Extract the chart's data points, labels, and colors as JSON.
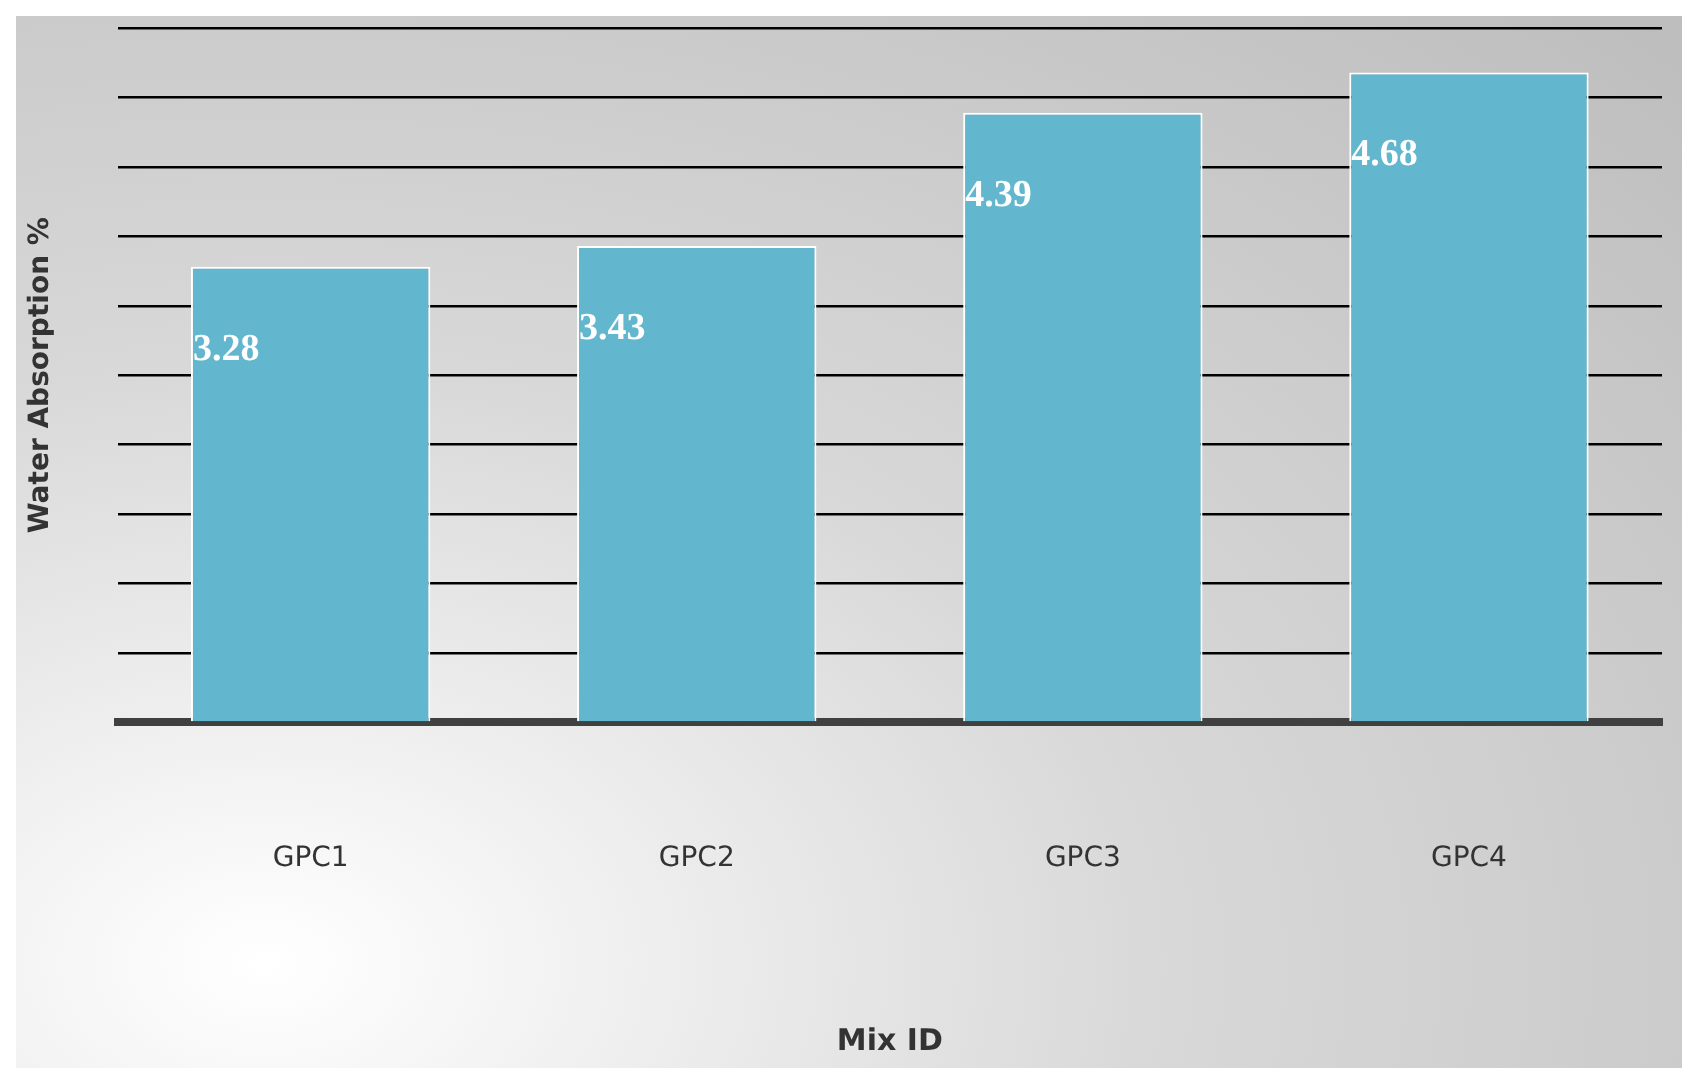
{
  "chart_data": {
    "type": "bar",
    "xlabel": "Mix ID",
    "ylabel": "Water Absorption %",
    "categories": [
      "GPC1",
      "GPC2",
      "GPC3",
      "GPC4"
    ],
    "values": [
      3.28,
      3.43,
      4.39,
      4.68
    ],
    "color": "#62b7ce",
    "ylim": [
      0,
      5
    ],
    "yticks": [
      {
        "value": 0,
        "label": null
      },
      {
        "value": 0.5,
        "label": null
      },
      {
        "value": 1,
        "label": null
      },
      {
        "value": 1.5,
        "label": null
      },
      {
        "value": 2,
        "label": null
      },
      {
        "value": 2.5,
        "label": null
      },
      {
        "value": 3,
        "label": null
      },
      {
        "value": 3.5,
        "label": null
      },
      {
        "value": 4,
        "label": null
      },
      {
        "value": 4.5,
        "label": null
      },
      {
        "value": 5,
        "label": null
      }
    ],
    "grid": "y",
    "tick_labels": "x",
    "data_labels": true,
    "legend": false
  }
}
